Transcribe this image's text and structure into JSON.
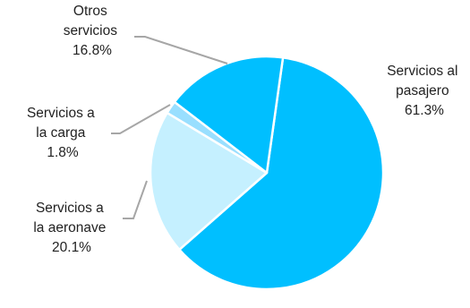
{
  "chart_data": {
    "type": "pie",
    "title": "",
    "slices": [
      {
        "label_lines": [
          "Servicios al",
          "pasajero"
        ],
        "value": 61.3,
        "value_label": "61.3%",
        "color": "#00bfff"
      },
      {
        "label_lines": [
          "Servicios a",
          "la aeronave"
        ],
        "value": 20.1,
        "value_label": "20.1%",
        "color": "#c5f0ff"
      },
      {
        "label_lines": [
          "Servicios a",
          "la carga"
        ],
        "value": 1.8,
        "value_label": "1.8%",
        "color": "#99dfff"
      },
      {
        "label_lines": [
          "Otros",
          "servicios"
        ],
        "value": 16.8,
        "value_label": "16.8%",
        "color": "#00bfff"
      }
    ],
    "legend": "none",
    "label_color": "#222222",
    "leader_color": "#a6a6a6"
  }
}
